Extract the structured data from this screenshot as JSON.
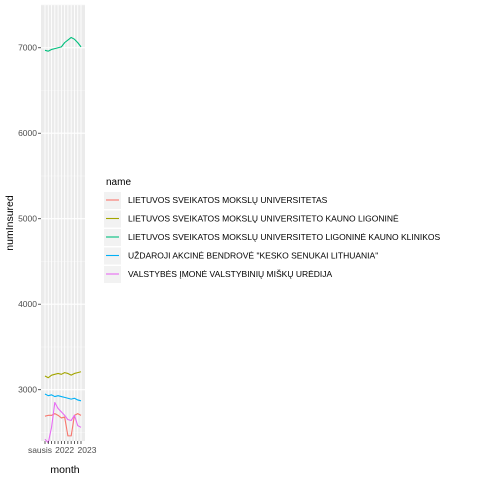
{
  "chart_data": {
    "type": "line",
    "xlabel": "month",
    "ylabel": "numInsured",
    "ylim": [
      2400,
      7500
    ],
    "yticks": [
      3000,
      4000,
      5000,
      6000,
      7000
    ],
    "x": [
      1,
      2,
      3,
      4,
      5,
      6,
      7,
      8,
      9,
      10,
      11,
      12
    ],
    "xtick_labels": [
      "sausis",
      "2022",
      "2023"
    ],
    "grid": true,
    "legend": {
      "title": "name",
      "position": "right"
    },
    "series": [
      {
        "name": "LIETUVOS SVEIKATOS MOKSLŲ UNIVERSITETAS",
        "color": "#F8766D",
        "values": [
          2690,
          2700,
          2700,
          2720,
          2700,
          2670,
          2680,
          2460,
          2460,
          2700,
          2720,
          2700
        ]
      },
      {
        "name": "LIETUVOS SVEIKATOS MOKSLŲ UNIVERSITETO KAUNO LIGONINĖ",
        "color": "#A3A500",
        "values": [
          3160,
          3140,
          3170,
          3180,
          3190,
          3180,
          3200,
          3190,
          3170,
          3190,
          3200,
          3210
        ]
      },
      {
        "name": "LIETUVOS SVEIKATOS MOKSLŲ UNIVERSITETO LIGONINĖ KAUNO KLINIKOS",
        "color": "#00BF7D",
        "values": [
          6970,
          6960,
          6980,
          6990,
          7000,
          7010,
          7060,
          7090,
          7120,
          7100,
          7060,
          7010
        ]
      },
      {
        "name": "UŽDAROJI AKCINĖ BENDROVĖ \"KESKO SENUKAI LITHUANIA\"",
        "color": "#00B0F6",
        "values": [
          2950,
          2930,
          2940,
          2920,
          2930,
          2920,
          2910,
          2900,
          2890,
          2900,
          2880,
          2870
        ]
      },
      {
        "name": "VALSTYBĖS ĮMONĖ VALSTYBINIŲ MIŠKŲ URĖDIJA",
        "color": "#E76BF3",
        "values": [
          2420,
          2380,
          2560,
          2850,
          2780,
          2740,
          2700,
          2650,
          2640,
          2700,
          2580,
          2560
        ]
      }
    ]
  }
}
